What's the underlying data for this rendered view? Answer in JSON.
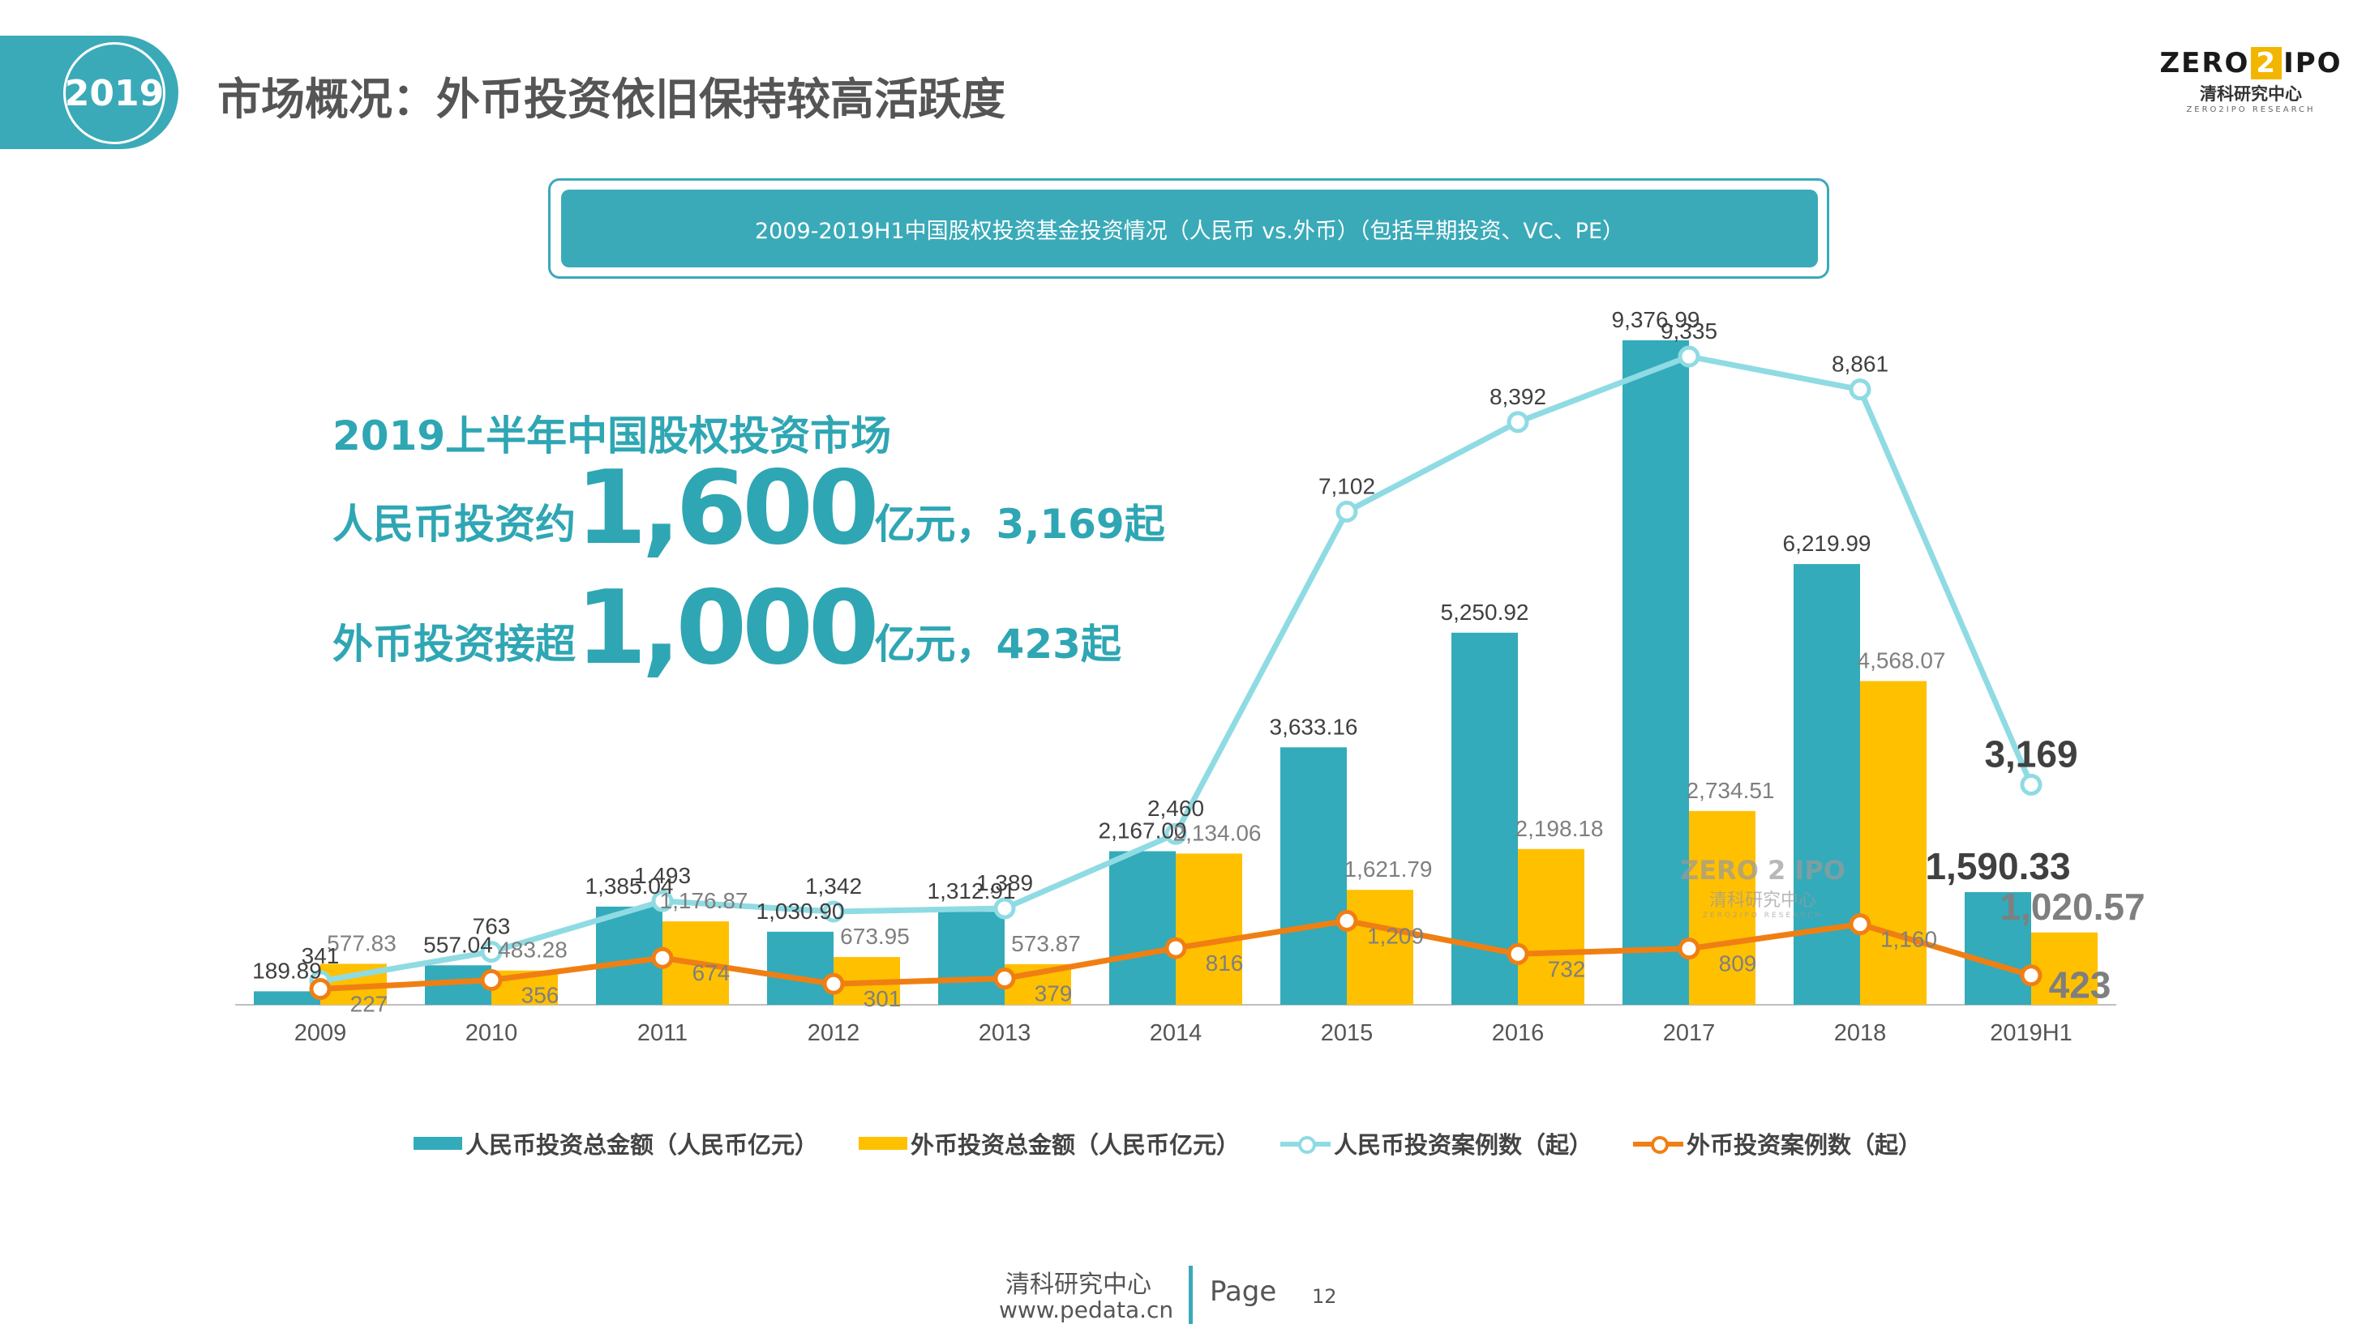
{
  "header": {
    "year_badge": "2019",
    "title": "市场概况：外币投资依旧保持较高活跃度"
  },
  "logo": {
    "top_left": "ZERO",
    "top_mid": "2",
    "top_right": "IPO",
    "cn": "清科研究中心",
    "en": "ZERO2IPO RESEARCH"
  },
  "banner": {
    "text": "2009-2019H1中国股权投资基金投资情况（人民币 vs.外币）（包括早期投资、VC、PE）"
  },
  "highlights": {
    "line1": "2019上半年中国股权投资市场",
    "line2_prefix": "人民币投资约",
    "line2_big": "1,600",
    "line2_suffix": "亿元，3,169起",
    "line3_prefix": "外币投资接超",
    "line3_big": "1,000",
    "line3_suffix": "亿元，423起"
  },
  "chart_data": {
    "type": "bar",
    "categories": [
      "2009",
      "2010",
      "2011",
      "2012",
      "2013",
      "2014",
      "2015",
      "2016",
      "2017",
      "2018",
      "2019H1"
    ],
    "series": [
      {
        "name": "人民币投资总金额（人民币亿元）",
        "kind": "bar",
        "axis": "left",
        "color": "#33abba",
        "values": [
          189.89,
          557.04,
          1385.04,
          1030.9,
          1312.91,
          2167.0,
          3633.16,
          5250.92,
          9376.99,
          6219.99,
          1590.33
        ],
        "labels": [
          "189.89",
          "557.04",
          "1,385.04",
          "1,030.90",
          "1,312.91",
          "2,167.00",
          "3,633.16",
          "5,250.92",
          "9,376.99",
          "6,219.99",
          "1,590.33"
        ]
      },
      {
        "name": "外币投资总金额（人民币亿元）",
        "kind": "bar",
        "axis": "left",
        "color": "#ffc000",
        "values": [
          577.83,
          483.28,
          1176.87,
          673.95,
          573.87,
          2134.06,
          1621.79,
          2198.18,
          2734.51,
          4568.07,
          1020.57
        ],
        "labels": [
          "577.83",
          "483.28",
          "1,176.87",
          "673.95",
          "573.87",
          "2,134.06",
          "1,621.79",
          "2,198.18",
          "2,734.51",
          "4,568.07",
          "1,020.57"
        ]
      },
      {
        "name": "人民币投资案例数（起）",
        "kind": "line",
        "axis": "right",
        "color": "#8fdbe3",
        "values": [
          341,
          763,
          1493,
          1342,
          1389,
          2460,
          7102,
          8392,
          9335,
          8861,
          3169
        ],
        "labels": [
          "341",
          "763",
          "1,493",
          "1,342",
          "1,389",
          "2,460",
          "7,102",
          "8,392",
          "9,335",
          "8,861",
          "3,169"
        ]
      },
      {
        "name": "外币投资案例数（起）",
        "kind": "line",
        "axis": "right",
        "color": "#f07f13",
        "values": [
          227,
          356,
          674,
          301,
          379,
          816,
          1209,
          732,
          809,
          1160,
          423
        ],
        "labels": [
          "227",
          "356",
          "674",
          "301",
          "379",
          "816",
          "1,209",
          "732",
          "809",
          "1,160",
          "423"
        ]
      }
    ],
    "legend_position": "bottom",
    "grid": false
  },
  "watermark": {
    "top_left": "ZERO",
    "top_mid": "2",
    "top_right": "IPO",
    "cn": "清科研究中心",
    "en": "ZERO2IPO RESEARCH"
  },
  "footer": {
    "org": "清科研究中心",
    "url": "www.pedata.cn",
    "page_label": "Page",
    "page_number": "12"
  },
  "colors": {
    "accent": "#3aaab8",
    "rmb_bar": "#33abba",
    "fx_bar": "#ffc000",
    "rmb_line": "#8fdbe3",
    "fx_line": "#f07f13"
  }
}
